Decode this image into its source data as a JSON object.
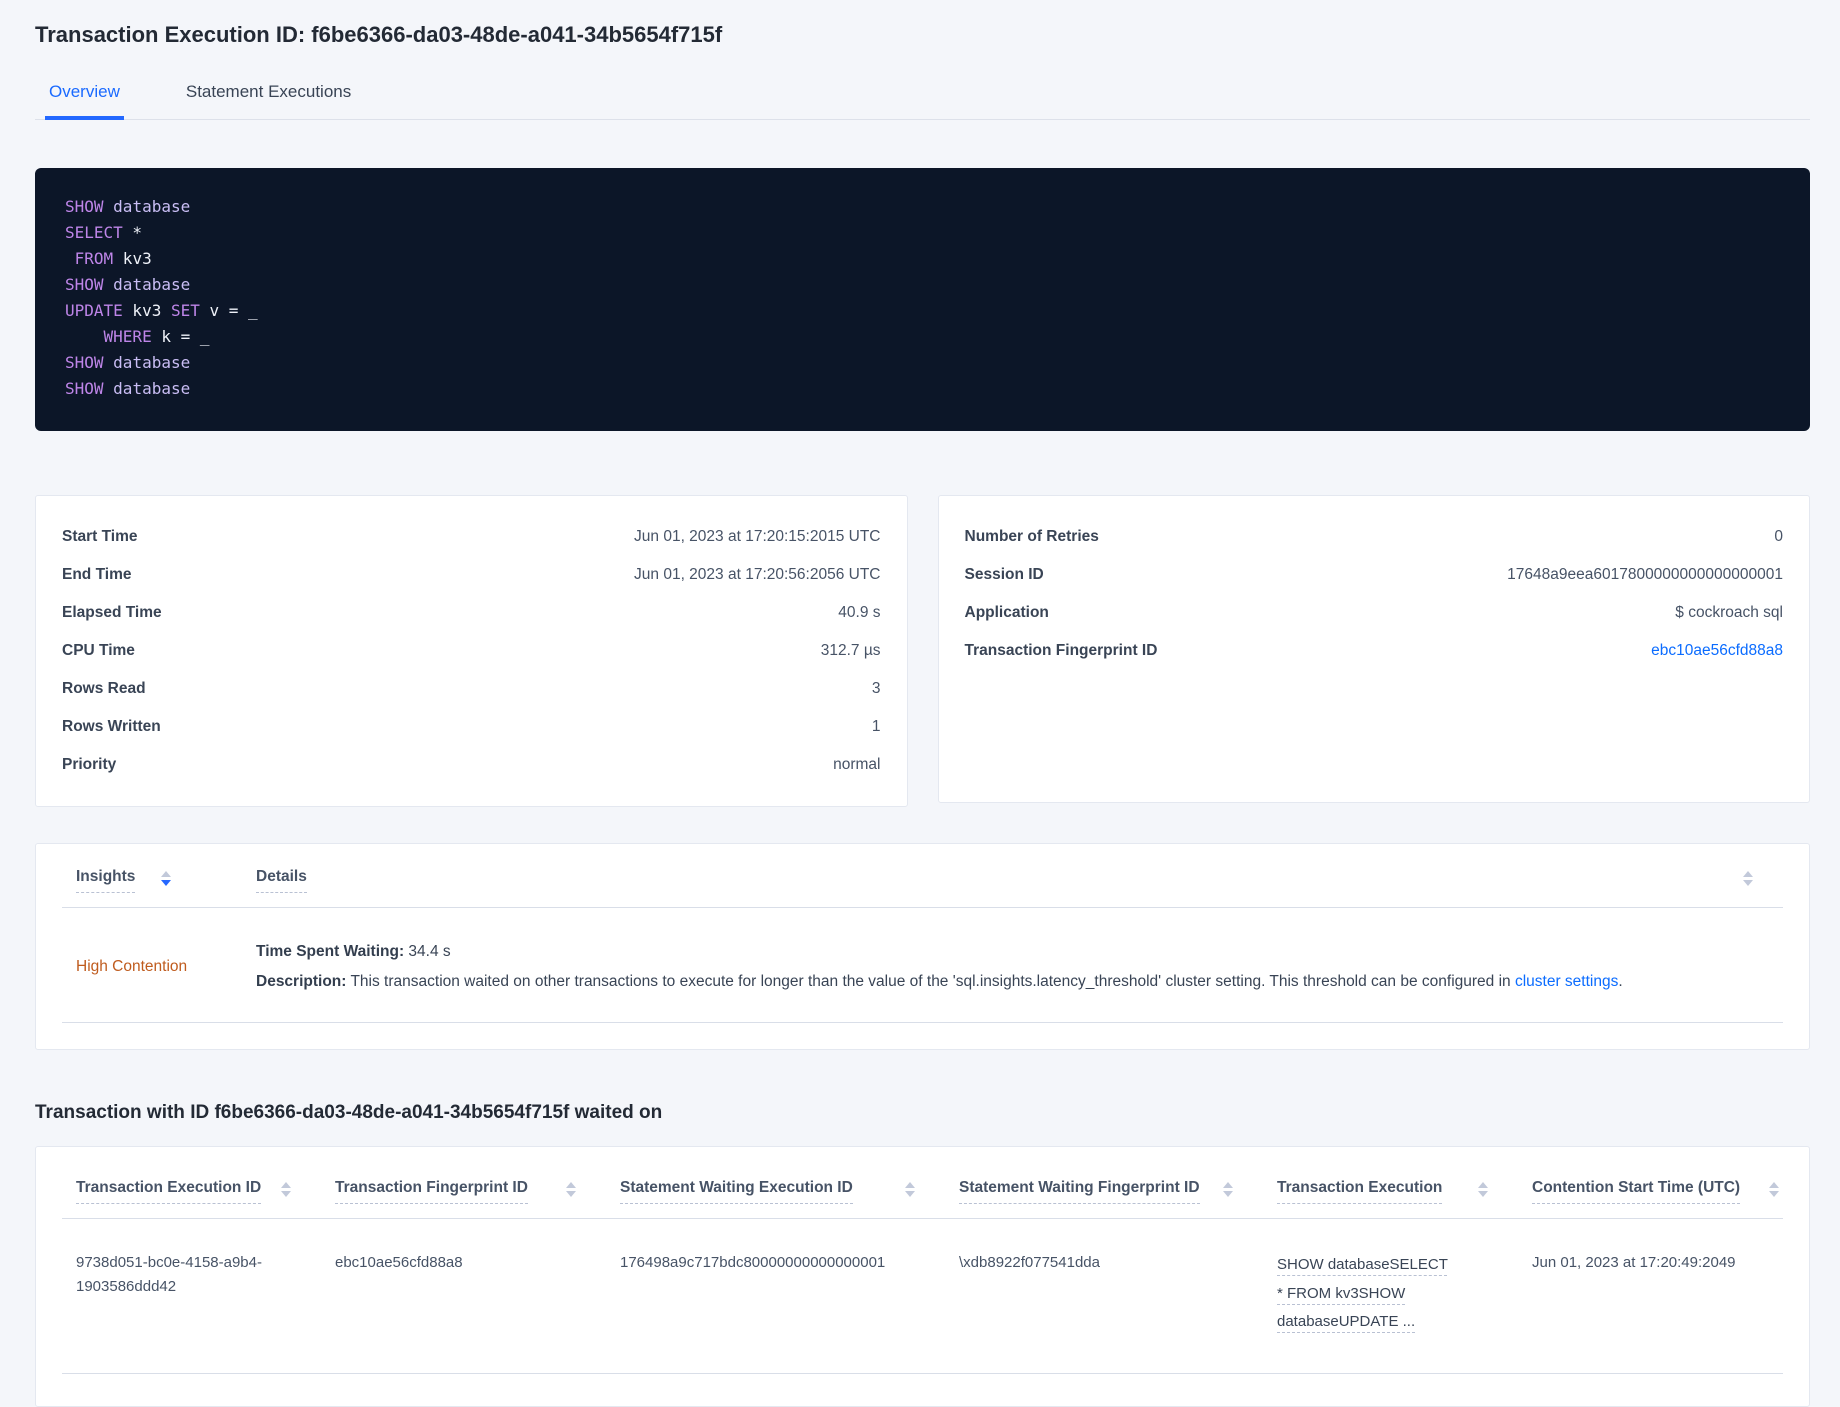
{
  "colors": {
    "accent_blue": "#1a6aff",
    "link_blue": "#0b6cff",
    "insight_orange": "#bf5b1d",
    "code_background": "#0c1628",
    "code_keyword": "#be85e8",
    "code_identifier": "#c9bdf4",
    "code_plain": "#eef1f8",
    "page_background": "#f4f6fa"
  },
  "page": {
    "title": "Transaction Execution ID: f6be6366-da03-48de-a041-34b5654f715f"
  },
  "tabs": {
    "overview": "Overview",
    "statement_executions": "Statement Executions"
  },
  "sql": {
    "lines": [
      [
        {
          "t": "SHOW",
          "c": "kw"
        },
        {
          "t": " ",
          "c": "pl"
        },
        {
          "t": "database",
          "c": "id"
        }
      ],
      [
        {
          "t": "SELECT",
          "c": "kw"
        },
        {
          "t": " *",
          "c": "pl"
        }
      ],
      [
        {
          "t": " ",
          "c": "pl"
        },
        {
          "t": "FROM",
          "c": "kw"
        },
        {
          "t": " kv3",
          "c": "pl"
        }
      ],
      [
        {
          "t": "SHOW",
          "c": "kw"
        },
        {
          "t": " ",
          "c": "pl"
        },
        {
          "t": "database",
          "c": "id"
        }
      ],
      [
        {
          "t": "UPDATE",
          "c": "kw"
        },
        {
          "t": " kv3 ",
          "c": "pl"
        },
        {
          "t": "SET",
          "c": "kw"
        },
        {
          "t": " v = _",
          "c": "pl"
        }
      ],
      [
        {
          "t": "    ",
          "c": "pl"
        },
        {
          "t": "WHERE",
          "c": "kw"
        },
        {
          "t": " k = _",
          "c": "pl"
        }
      ],
      [
        {
          "t": "SHOW",
          "c": "kw"
        },
        {
          "t": " ",
          "c": "pl"
        },
        {
          "t": "database",
          "c": "id"
        }
      ],
      [
        {
          "t": "SHOW",
          "c": "kw"
        },
        {
          "t": " ",
          "c": "pl"
        },
        {
          "t": "database",
          "c": "id"
        }
      ]
    ]
  },
  "details_left": {
    "rows": [
      {
        "label": "Start Time",
        "value": "Jun 01, 2023 at 17:20:15:2015 UTC"
      },
      {
        "label": "End Time",
        "value": "Jun 01, 2023 at 17:20:56:2056 UTC"
      },
      {
        "label": "Elapsed Time",
        "value": "40.9 s"
      },
      {
        "label": "CPU Time",
        "value": "312.7 µs"
      },
      {
        "label": "Rows Read",
        "value": "3"
      },
      {
        "label": "Rows Written",
        "value": "1"
      },
      {
        "label": "Priority",
        "value": "normal"
      }
    ]
  },
  "details_right": {
    "rows": [
      {
        "label": "Number of Retries",
        "value": "0"
      },
      {
        "label": "Session ID",
        "value": "17648a9eea6017800000000000000001"
      },
      {
        "label": "Application",
        "value": "$ cockroach sql"
      },
      {
        "label": "Transaction Fingerprint ID",
        "value": "ebc10ae56cfd88a8"
      }
    ]
  },
  "insights": {
    "col_insights": "Insights",
    "col_details": "Details",
    "row": {
      "name": "High Contention",
      "waiting_label": "Time Spent Waiting:",
      "waiting_value": " 34.4 s",
      "description_label": "Description:",
      "description_text": " This transaction waited on other transactions to execute for longer than the value of the 'sql.insights.latency_threshold' cluster setting. This threshold can be configured in ",
      "description_link": "cluster settings",
      "description_suffix": "."
    }
  },
  "waited": {
    "heading": "Transaction with ID f6be6366-da03-48de-a041-34b5654f715f waited on",
    "columns": [
      "Transaction Execution ID",
      "Transaction Fingerprint ID",
      "Statement Waiting Execution ID",
      "Statement Waiting Fingerprint ID",
      "Transaction Execution",
      "Contention Start Time (UTC)"
    ],
    "row": {
      "transaction_execution_id": "9738d051-bc0e-4158-a9b4-1903586ddd42",
      "transaction_fingerprint_id": "ebc10ae56cfd88a8",
      "statement_waiting_execution_id": "176498a9c717bdc80000000000000001",
      "statement_waiting_fingerprint_id": "\\xdb8922f077541dda",
      "transaction_execution": "SHOW databaseSELECT * FROM kv3SHOW databaseUPDATE ...",
      "contention_start_time": "Jun 01, 2023 at 17:20:49:2049"
    }
  }
}
